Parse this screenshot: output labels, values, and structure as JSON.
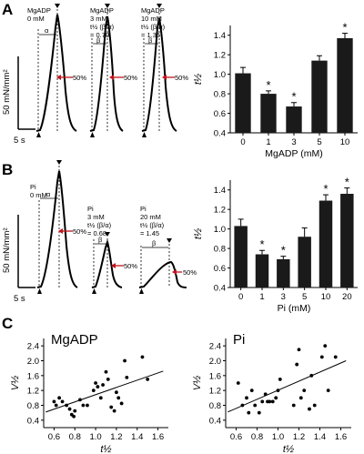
{
  "panels": {
    "A": {
      "letter": "A",
      "scale_y": "50 mN/mm²",
      "scale_x": "5 s",
      "traces": [
        {
          "lines": [
            "MgADP",
            "0 mM"
          ],
          "marker": "α",
          "half_label": "50%"
        },
        {
          "lines": [
            "MgADP",
            "3 mM",
            "t½ (β/α)",
            "= 0.70"
          ],
          "marker": "β",
          "half_label": "50%"
        },
        {
          "lines": [
            "MgADP",
            "10 mM",
            "t½ (β/α)",
            "= 1.35"
          ],
          "marker": "β",
          "half_label": "50%"
        }
      ]
    },
    "B": {
      "letter": "B",
      "scale_y": "50 mN/mm²",
      "scale_x": "5 s",
      "traces": [
        {
          "lines": [
            "Pi",
            "0 mM"
          ],
          "marker": "α",
          "half_label": "50%"
        },
        {
          "lines": [
            "Pi",
            "3 mM",
            "t½ (β/α)",
            "= 0.68"
          ],
          "marker": "β",
          "half_label": "50%"
        },
        {
          "lines": [
            "Pi",
            "20 mM",
            "t½ (β/α)",
            "= 1.45"
          ],
          "marker": "β",
          "half_label": "50%"
        }
      ]
    },
    "C": {
      "letter": "C"
    }
  },
  "chart_data": [
    {
      "id": "A-bar",
      "type": "bar",
      "categories": [
        "0",
        "1",
        "3",
        "5",
        "10"
      ],
      "values": [
        1.01,
        0.8,
        0.67,
        1.14,
        1.37
      ],
      "errors": [
        0.06,
        0.03,
        0.04,
        0.05,
        0.05
      ],
      "significant": [
        false,
        true,
        true,
        false,
        true
      ],
      "sig_mark": "*",
      "xlabel": "MgADP (mM)",
      "ylabel": "t½",
      "ylim": [
        0.4,
        1.5
      ],
      "yticks": [
        "0.4",
        "0.6",
        "0.8",
        "1.0",
        "1.2",
        "1.4"
      ]
    },
    {
      "id": "B-bar",
      "type": "bar",
      "categories": [
        "0",
        "1",
        "3",
        "5",
        "10",
        "20"
      ],
      "values": [
        1.03,
        0.74,
        0.69,
        0.92,
        1.29,
        1.36
      ],
      "errors": [
        0.07,
        0.04,
        0.03,
        0.09,
        0.06,
        0.06
      ],
      "significant": [
        false,
        true,
        true,
        false,
        true,
        true
      ],
      "sig_mark": "*",
      "xlabel": "Pi (mM)",
      "ylabel": "t½",
      "ylim": [
        0.4,
        1.5
      ],
      "yticks": [
        "0.4",
        "0.6",
        "0.8",
        "1.0",
        "1.2",
        "1.4"
      ]
    },
    {
      "id": "C-left",
      "type": "scatter",
      "title": "MgADP",
      "xlabel": "t½",
      "ylabel": "V½",
      "xlim": [
        0.5,
        1.7
      ],
      "ylim": [
        0.2,
        2.6
      ],
      "xticks": [
        "0.6",
        "0.8",
        "1.0",
        "1.2",
        "1.4",
        "1.6"
      ],
      "yticks": [
        "0.4",
        "0.8",
        "1.2",
        "1.6",
        "2.0",
        "2.4"
      ],
      "x": [
        0.6,
        0.62,
        0.65,
        0.68,
        0.72,
        0.75,
        0.77,
        0.79,
        0.8,
        0.85,
        0.88,
        0.92,
        0.98,
        1.0,
        1.02,
        1.05,
        1.07,
        1.1,
        1.12,
        1.15,
        1.18,
        1.2,
        1.22,
        1.25,
        1.28,
        1.3,
        1.45,
        1.5
      ],
      "y": [
        0.9,
        0.8,
        1.0,
        0.9,
        0.8,
        0.7,
        0.55,
        0.5,
        0.65,
        0.95,
        0.8,
        0.8,
        1.2,
        1.4,
        1.3,
        1.0,
        1.35,
        1.7,
        1.5,
        0.75,
        0.65,
        1.15,
        1.0,
        0.85,
        2.0,
        1.55,
        2.1,
        1.5
      ],
      "fit": {
        "x": [
          0.52,
          1.65
        ],
        "y": [
          0.62,
          1.72
        ]
      }
    },
    {
      "id": "C-right",
      "type": "scatter",
      "title": "Pi",
      "xlabel": "t½",
      "ylabel": "V½",
      "xlim": [
        0.5,
        1.7
      ],
      "ylim": [
        0.2,
        2.6
      ],
      "xticks": [
        "0.6",
        "0.8",
        "1.0",
        "1.2",
        "1.4",
        "1.6"
      ],
      "yticks": [
        "0.4",
        "0.8",
        "1.2",
        "1.6",
        "2.0",
        "2.4"
      ],
      "x": [
        0.62,
        0.66,
        0.7,
        0.72,
        0.75,
        0.78,
        0.82,
        0.85,
        0.88,
        0.9,
        0.92,
        0.95,
        0.98,
        1.0,
        1.02,
        1.15,
        1.18,
        1.2,
        1.22,
        1.25,
        1.3,
        1.32,
        1.35,
        1.42,
        1.45,
        1.48,
        1.55
      ],
      "y": [
        1.4,
        0.8,
        1.0,
        0.6,
        1.2,
        0.8,
        0.6,
        0.9,
        1.1,
        0.9,
        0.9,
        0.9,
        1.0,
        1.2,
        1.5,
        0.8,
        1.9,
        2.3,
        1.0,
        1.2,
        0.7,
        1.6,
        0.8,
        2.1,
        2.4,
        1.2,
        2.1
      ],
      "fit": {
        "x": [
          0.52,
          1.65
        ],
        "y": [
          0.62,
          2.0
        ]
      }
    }
  ]
}
